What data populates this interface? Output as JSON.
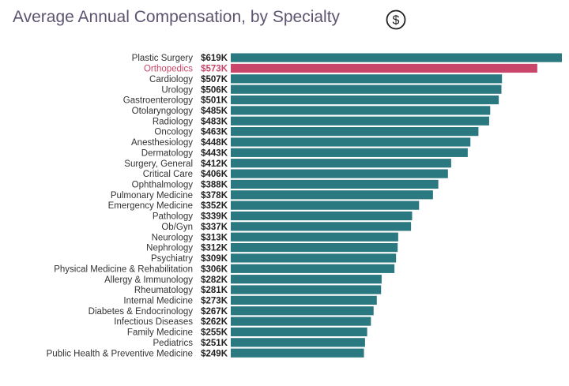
{
  "chart_data": {
    "type": "bar",
    "orientation": "horizontal",
    "title": "Average Annual Compensation, by Specialty",
    "title_icon": "dollar-circle-icon",
    "xlabel": "",
    "ylabel": "",
    "xlim": [
      0,
      619
    ],
    "grid": false,
    "colors": {
      "default": "#2a7880",
      "highlight": "#c9466a",
      "title": "#5e5470"
    },
    "highlight": "Orthopedics",
    "categories": [
      "Plastic Surgery",
      "Orthopedics",
      "Cardiology",
      "Urology",
      "Gastroenterology",
      "Otolaryngology",
      "Radiology",
      "Oncology",
      "Anesthesiology",
      "Dermatology",
      "Surgery, General",
      "Critical Care",
      "Ophthalmology",
      "Pulmonary Medicine",
      "Emergency Medicine",
      "Pathology",
      "Ob/Gyn",
      "Neurology",
      "Nephrology",
      "Psychiatry",
      "Physical Medicine & Rehabilitation",
      "Allergy & Immunology",
      "Rheumatology",
      "Internal Medicine",
      "Diabetes & Endocrinology",
      "Infectious Diseases",
      "Family Medicine",
      "Pediatrics",
      "Public Health & Preventive Medicine"
    ],
    "values": [
      619,
      573,
      507,
      506,
      501,
      485,
      483,
      463,
      448,
      443,
      412,
      406,
      388,
      378,
      352,
      339,
      337,
      313,
      312,
      309,
      306,
      282,
      281,
      273,
      267,
      262,
      255,
      251,
      249
    ],
    "value_labels": [
      "$619K",
      "$573K",
      "$507K",
      "$506K",
      "$501K",
      "$485K",
      "$483K",
      "$463K",
      "$448K",
      "$443K",
      "$412K",
      "$406K",
      "$388K",
      "$378K",
      "$352K",
      "$339K",
      "$337K",
      "$313K",
      "$312K",
      "$309K",
      "$306K",
      "$282K",
      "$281K",
      "$273K",
      "$267K",
      "$262K",
      "$255K",
      "$251K",
      "$249K"
    ]
  }
}
